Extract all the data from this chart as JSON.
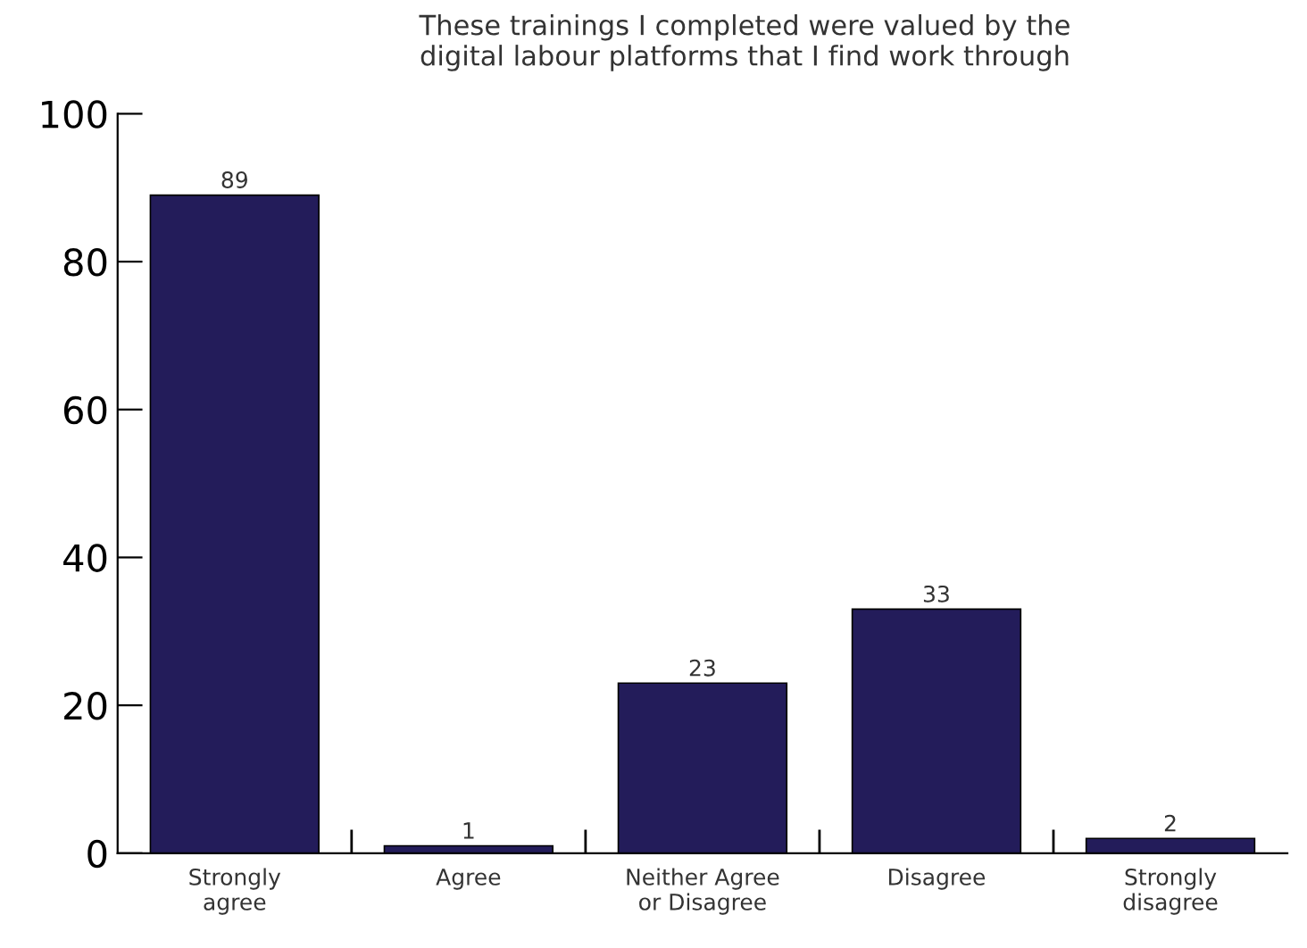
{
  "chart_data": {
    "type": "bar",
    "title": "These trainings I completed were valued by the\ndigital labour platforms that I find work through",
    "categories": [
      "Strongly\nagree",
      "Agree",
      "Neither Agree\nor Disagree",
      "Disagree",
      "Strongly\ndisagree"
    ],
    "values": [
      89,
      1,
      23,
      33,
      2
    ],
    "color": "#231c5a",
    "ylim": [
      0,
      100
    ],
    "yticks": [
      0,
      20,
      40,
      60,
      80,
      100
    ],
    "grid": false,
    "data_labels": true
  }
}
